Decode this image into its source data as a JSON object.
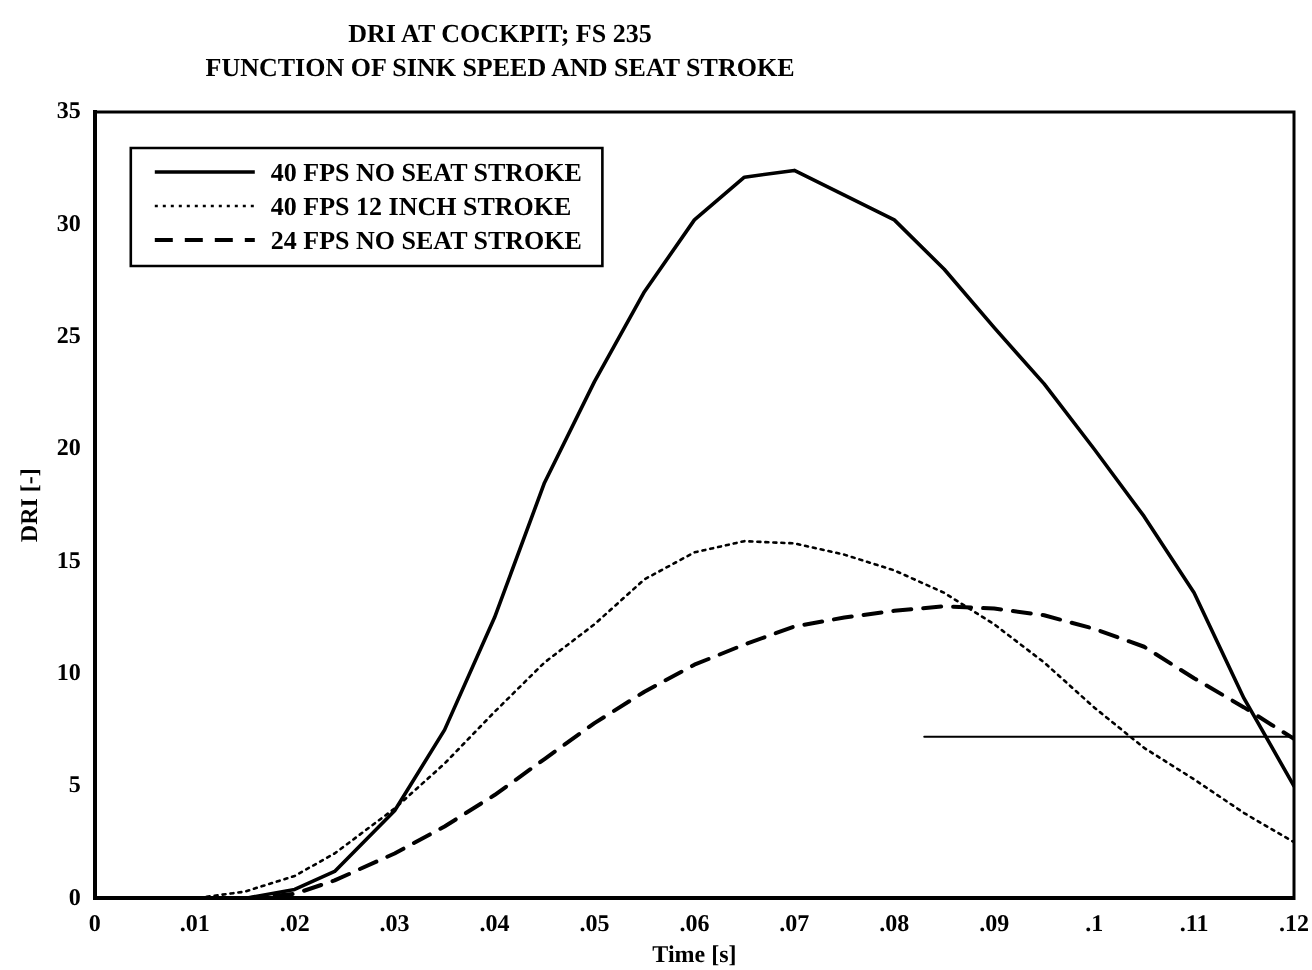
{
  "chart_data": {
    "type": "line",
    "title": "DRI AT COCKPIT; FS 235",
    "subtitle": "FUNCTION OF SINK SPEED AND SEAT STROKE",
    "xlabel": "Time [s]",
    "ylabel": "DRI [-]",
    "x": [
      0,
      0.01,
      0.015,
      0.02,
      0.024,
      0.03,
      0.035,
      0.04,
      0.045,
      0.05,
      0.055,
      0.06,
      0.065,
      0.07,
      0.075,
      0.08,
      0.085,
      0.09,
      0.095,
      0.1,
      0.105,
      0.11,
      0.115,
      0.12
    ],
    "series": [
      {
        "name": "40 FPS NO SEAT STROKE",
        "color": "#000000",
        "line_style": "solid",
        "values": [
          0,
          0,
          0,
          0.4,
          1.2,
          3.9,
          7.5,
          12.5,
          18.5,
          23,
          27,
          30.2,
          32.1,
          32.4,
          31.3,
          30.2,
          28,
          25.4,
          22.9,
          20,
          17,
          13.6,
          8.9,
          5
        ]
      },
      {
        "name": "40 FPS 12 INCH STROKE",
        "color": "#000000",
        "line_style": "dotted",
        "values": [
          0,
          0,
          0.3,
          1,
          2,
          4,
          6,
          8.3,
          10.5,
          12.2,
          14.2,
          15.4,
          15.9,
          15.8,
          15.3,
          14.6,
          13.6,
          12.2,
          10.5,
          8.5,
          6.7,
          5.3,
          3.8,
          2.5
        ]
      },
      {
        "name": "24 FPS NO SEAT STROKE",
        "color": "#000000",
        "line_style": "dashed",
        "values": [
          0,
          0,
          0,
          0.2,
          0.8,
          2,
          3.2,
          4.6,
          6.2,
          7.8,
          9.2,
          10.4,
          11.3,
          12.1,
          12.5,
          12.8,
          13,
          12.9,
          12.6,
          12,
          11.2,
          9.8,
          8.5,
          7.1
        ]
      },
      {
        "color": "#000000",
        "line_style": "solid",
        "x": [
          0.083,
          0.12
        ],
        "values": [
          7.2,
          7.2
        ]
      }
    ],
    "xlim": [
      0,
      0.12
    ],
    "xticks": [
      0,
      {
        "value": 0.01,
        "label": ".01"
      },
      {
        "value": 0.02,
        "label": ".02"
      },
      {
        "value": 0.03,
        "label": ".03"
      },
      {
        "value": 0.04,
        "label": ".04"
      },
      {
        "value": 0.05,
        "label": ".05"
      },
      {
        "value": 0.06,
        "label": ".06"
      },
      {
        "value": 0.07,
        "label": ".07"
      },
      {
        "value": 0.08,
        "label": ".08"
      },
      {
        "value": 0.09,
        "label": ".09"
      },
      {
        "value": 0.1,
        "label": ".1"
      },
      {
        "value": 0.11,
        "label": ".11"
      },
      {
        "value": 0.12,
        "label": ".12"
      }
    ],
    "ylim": [
      0,
      35
    ],
    "yticks": [
      0,
      5,
      10,
      15,
      20,
      25,
      30,
      35
    ],
    "grid": false,
    "legend": "top left",
    "marker": "none"
  }
}
